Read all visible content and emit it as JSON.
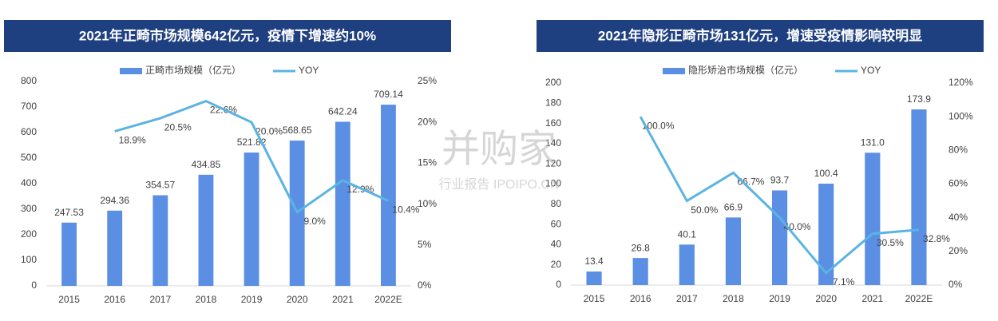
{
  "chart_data": [
    {
      "type": "bar-line",
      "title": "2021年正畸市场规模642亿元，疫情下增速约10%",
      "categories": [
        "2015",
        "2016",
        "2017",
        "2018",
        "2019",
        "2020",
        "2021",
        "2022E"
      ],
      "series": [
        {
          "name": "正畸市场规模（亿元）",
          "type": "bar",
          "color": "#5b8fe3",
          "values": [
            247.53,
            294.36,
            354.57,
            434.85,
            521.82,
            568.65,
            642.24,
            709.14
          ]
        },
        {
          "name": "YOY",
          "type": "line",
          "axis": "y2",
          "color": "#5ab4e2",
          "values": [
            null,
            18.9,
            20.5,
            22.6,
            20.0,
            9.0,
            12.9,
            10.4
          ],
          "value_labels": [
            null,
            "18.9%",
            "20.5%",
            "22.6%",
            "20.0%",
            "9.0%",
            "12.9%",
            "10.4%"
          ]
        }
      ],
      "ylim": [
        0,
        800
      ],
      "yticks": [
        0,
        100,
        200,
        300,
        400,
        500,
        600,
        700,
        800
      ],
      "y2lim": [
        0,
        25
      ],
      "y2ticks": [
        {
          "value": 0,
          "label": "0%"
        },
        {
          "value": 5,
          "label": "5%"
        },
        {
          "value": 10,
          "label": "10%"
        },
        {
          "value": 15,
          "label": "15%"
        },
        {
          "value": 20,
          "label": "20%"
        },
        {
          "value": 25,
          "label": "25%"
        }
      ]
    },
    {
      "type": "bar-line",
      "title": "2021年隐形正畸市场131亿元，增速受疫情影响较明显",
      "categories": [
        "2015",
        "2016",
        "2017",
        "2018",
        "2019",
        "2020",
        "2021",
        "2022E"
      ],
      "series": [
        {
          "name": "隐形矫治市场规模（亿元）",
          "type": "bar",
          "color": "#5b8fe3",
          "values": [
            13.4,
            26.8,
            40.1,
            66.9,
            93.7,
            100.4,
            131.0,
            173.9
          ],
          "value_labels": [
            "13.4",
            "26.8",
            "40.1",
            "66.9",
            "93.7",
            "100.4",
            "131.0",
            "173.9"
          ]
        },
        {
          "name": "YOY",
          "type": "line",
          "axis": "y2",
          "color": "#5ab4e2",
          "values": [
            null,
            100.0,
            50.0,
            66.7,
            40.0,
            7.1,
            30.5,
            32.8
          ],
          "value_labels": [
            null,
            "100.0%",
            "50.0%",
            "66.7%",
            "40.0%",
            "7.1%",
            "30.5%",
            "32.8%"
          ]
        }
      ],
      "ylim": [
        0,
        200
      ],
      "yticks": [
        0,
        20,
        40,
        60,
        80,
        100,
        120,
        140,
        160,
        180,
        200
      ],
      "y2lim": [
        0,
        120
      ],
      "y2ticks": [
        {
          "value": 0,
          "label": "0%"
        },
        {
          "value": 20,
          "label": "20%"
        },
        {
          "value": 40,
          "label": "40%"
        },
        {
          "value": 60,
          "label": "60%"
        },
        {
          "value": 80,
          "label": "80%"
        },
        {
          "value": 100,
          "label": "100%"
        },
        {
          "value": 120,
          "label": "120%"
        }
      ]
    }
  ],
  "watermark": {
    "main": "并购家",
    "sub": "行业报告 IPOIPO.CN"
  }
}
